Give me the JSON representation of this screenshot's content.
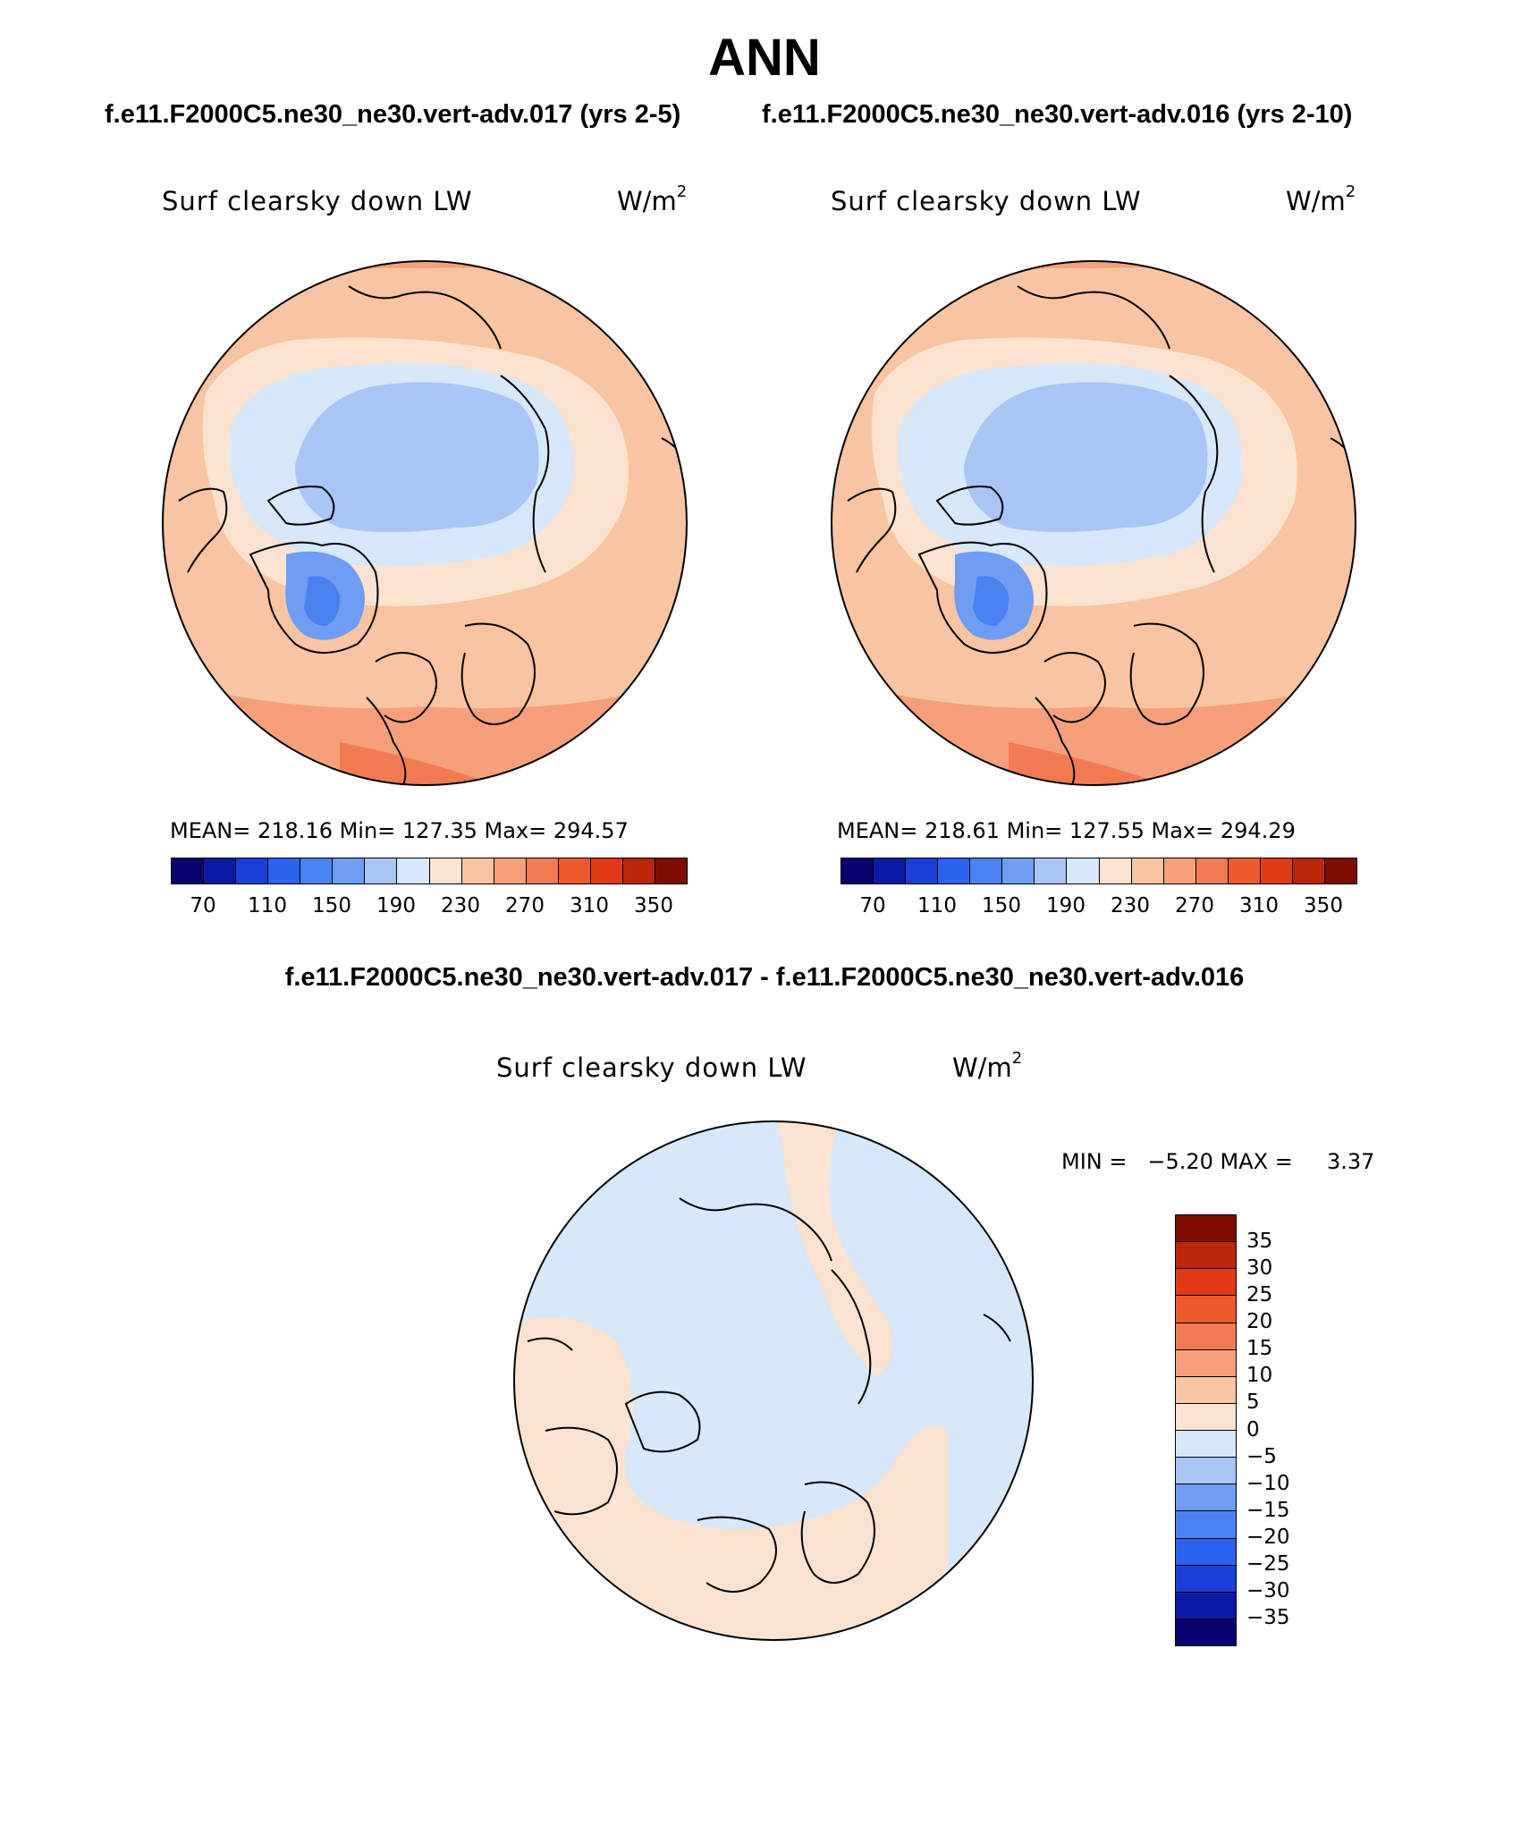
{
  "figure": {
    "title": "ANN",
    "case_left": "f.e11.F2000C5.ne30_ne30.vert-adv.017 (yrs 2-5)",
    "case_right": "f.e11.F2000C5.ne30_ne30.vert-adv.016 (yrs 2-10)",
    "case_diff": "f.e11.F2000C5.ne30_ne30.vert-adv.017 - f.e11.F2000C5.ne30_ne30.vert-adv.016"
  },
  "panels": [
    {
      "variable": "Surf clearsky down LW",
      "unit_base": "W/m",
      "unit_exp": "2",
      "stats": "MEAN= 218.16   Min= 127.35   Max= 294.57",
      "projection": "north-polar-stereographic",
      "field": "surface clearsky downwelling longwave",
      "field_levels": {
        "greenland_core": 150,
        "arctic_ocean": 190,
        "high_lat_land": 210,
        "subarctic": 240,
        "midlat_land": 270,
        "southern_rim": 300
      }
    },
    {
      "variable": "Surf clearsky down LW",
      "unit_base": "W/m",
      "unit_exp": "2",
      "stats": "MEAN= 218.61   Min= 127.55   Max= 294.29",
      "projection": "north-polar-stereographic",
      "field": "surface clearsky downwelling longwave",
      "field_levels": {
        "greenland_core": 150,
        "arctic_ocean": 190,
        "high_lat_land": 210,
        "subarctic": 240,
        "midlat_land": 270,
        "southern_rim": 300
      }
    },
    {
      "variable": "Surf clearsky down LW",
      "unit_base": "W/m",
      "unit_exp": "2",
      "stats": "MIN =   −5.20 MAX =     3.37",
      "projection": "north-polar-stereographic",
      "field": "difference",
      "field_levels": {
        "ocean_and_arctic": -2.5,
        "eurasia_north_america": 2.5
      }
    }
  ],
  "colorbar_abs": {
    "colors": [
      "#08036e",
      "#0a1aa6",
      "#1a3fd6",
      "#2b62ee",
      "#4a82f2",
      "#6e9df3",
      "#a8c5f6",
      "#d6e8f9",
      "#fbe3d0",
      "#f8c4a2",
      "#f5a07a",
      "#f27a52",
      "#ee5a2c",
      "#e03b16",
      "#ba2607",
      "#7e0c03"
    ],
    "labels": [
      "70",
      "110",
      "150",
      "190",
      "230",
      "270",
      "310",
      "350"
    ]
  },
  "colorbar_diff": {
    "colors": [
      "#7e0c03",
      "#ba2607",
      "#e03b16",
      "#ee5a2c",
      "#f27a52",
      "#f5a07a",
      "#f8c4a2",
      "#fbe3d0",
      "#d6e8f9",
      "#a8c5f6",
      "#6e9df3",
      "#4a82f2",
      "#2b62ee",
      "#1a3fd6",
      "#0a1aa6",
      "#08036e"
    ],
    "labels": [
      "35",
      "30",
      "25",
      "20",
      "15",
      "10",
      "5",
      "0",
      "−5",
      "−10",
      "−15",
      "−20",
      "−25",
      "−30",
      "−35"
    ]
  }
}
